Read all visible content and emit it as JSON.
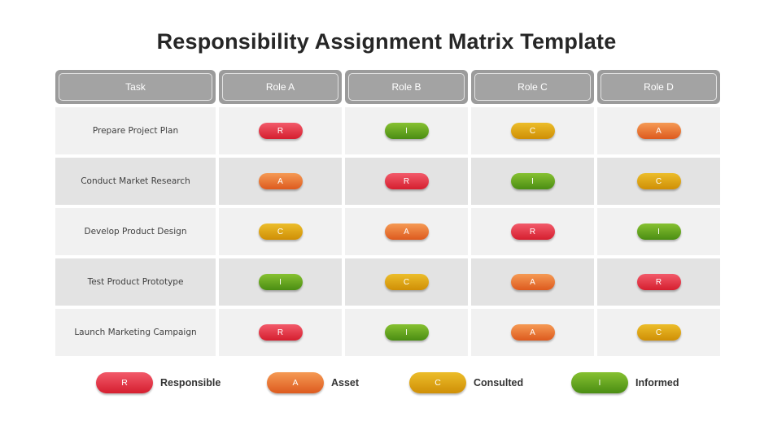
{
  "title": "Responsibility Assignment Matrix Template",
  "headers": [
    "Task",
    "Role A",
    "Role B",
    "Role C",
    "Role D"
  ],
  "rows": [
    {
      "task": "Prepare Project Plan",
      "roles": [
        "R",
        "I",
        "C",
        "A"
      ]
    },
    {
      "task": "Conduct Market Research",
      "roles": [
        "A",
        "R",
        "I",
        "C"
      ]
    },
    {
      "task": "Develop Product Design",
      "roles": [
        "C",
        "A",
        "R",
        "I"
      ]
    },
    {
      "task": "Test Product Prototype",
      "roles": [
        "I",
        "C",
        "A",
        "R"
      ]
    },
    {
      "task": "Launch Marketing Campaign",
      "roles": [
        "R",
        "I",
        "A",
        "C"
      ]
    }
  ],
  "legend": [
    {
      "code": "R",
      "label": "Responsible",
      "color": "#d51e2f"
    },
    {
      "code": "A",
      "label": "Asset",
      "color": "#dd5a1e"
    },
    {
      "code": "C",
      "label": "Consulted",
      "color": "#cf8f06"
    },
    {
      "code": "I",
      "label": "Informed",
      "color": "#4a8d13"
    }
  ]
}
